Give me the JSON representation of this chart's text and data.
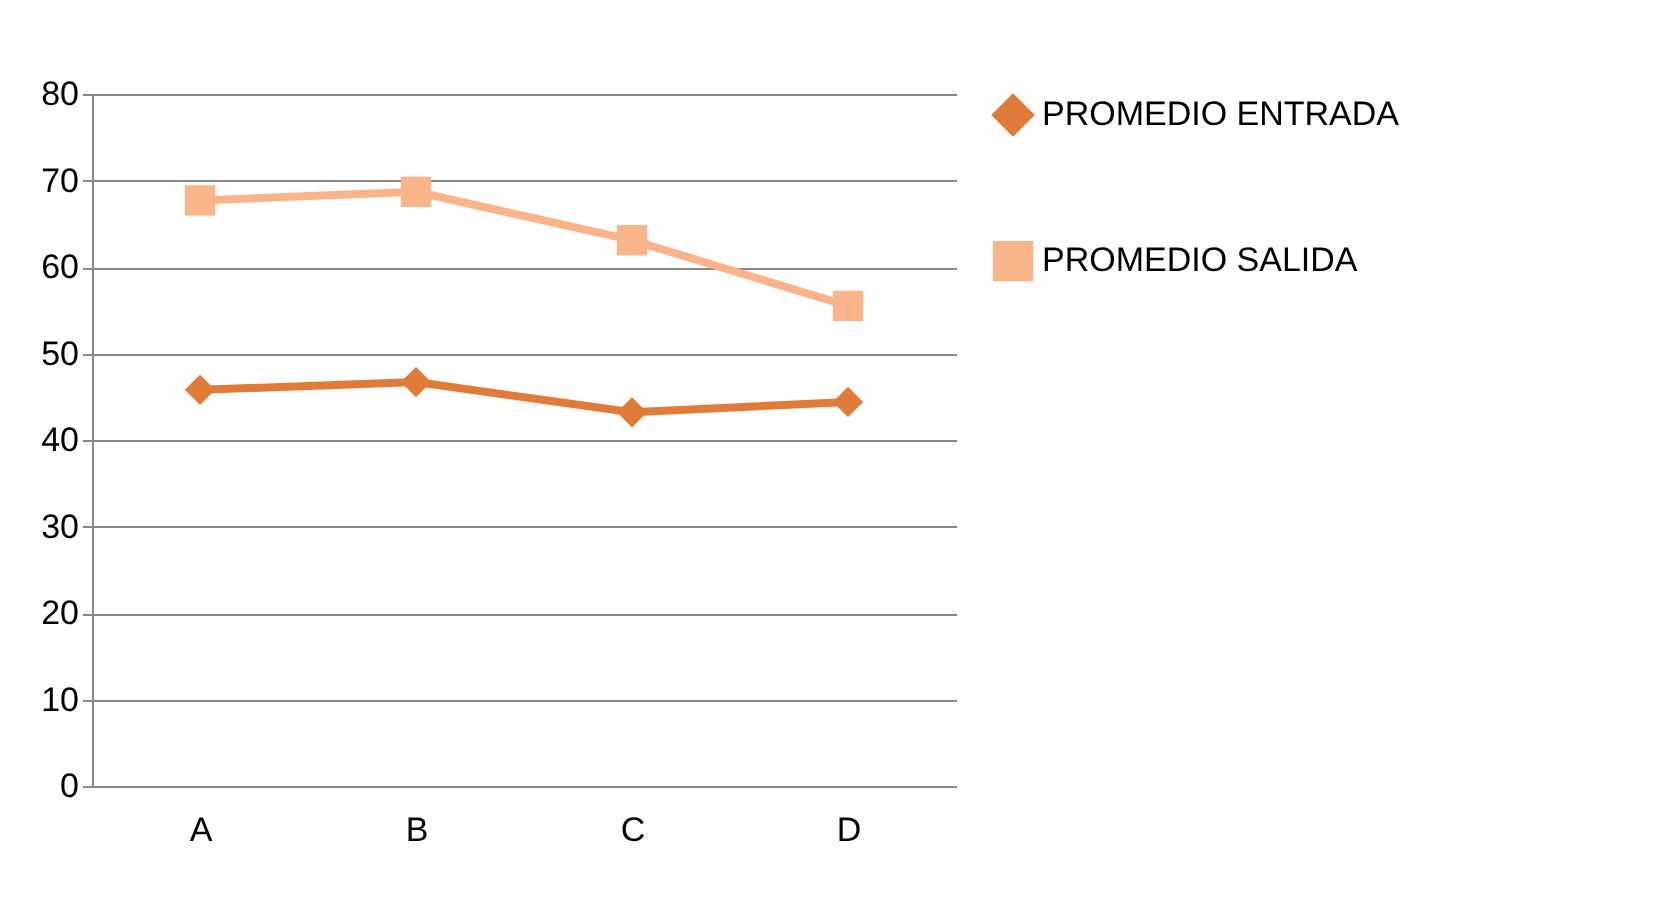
{
  "chart_data": {
    "type": "line",
    "categories": [
      "A",
      "B",
      "C",
      "D"
    ],
    "series": [
      {
        "name": "PROMEDIO ENTRADA",
        "color": "#e07b39",
        "marker": "diamond",
        "values": [
          45.8,
          46.7,
          43.2,
          44.4
        ]
      },
      {
        "name": "PROMEDIO SALIDA",
        "color": "#f9b48a",
        "marker": "square",
        "values": [
          67.7,
          68.7,
          63.1,
          55.5
        ]
      }
    ],
    "ylim": [
      0,
      80
    ],
    "yticks": [
      0,
      10,
      20,
      30,
      40,
      50,
      60,
      70,
      80
    ],
    "grid": "y",
    "legend": "right",
    "line_style": "solid"
  }
}
